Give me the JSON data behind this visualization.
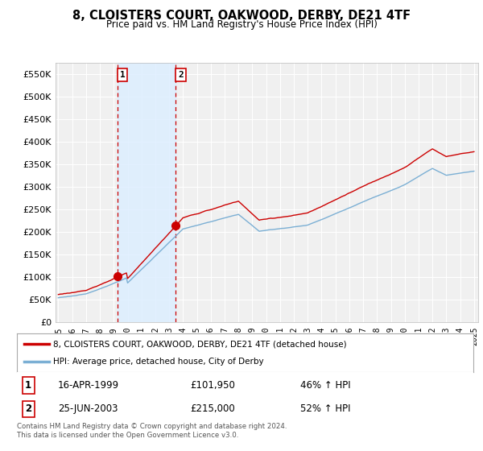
{
  "title": "8, CLOISTERS COURT, OAKWOOD, DERBY, DE21 4TF",
  "subtitle": "Price paid vs. HM Land Registry's House Price Index (HPI)",
  "ylim": [
    0,
    575000
  ],
  "yticks": [
    0,
    50000,
    100000,
    150000,
    200000,
    250000,
    300000,
    350000,
    400000,
    450000,
    500000,
    550000
  ],
  "ytick_labels": [
    "£0",
    "£50K",
    "£100K",
    "£150K",
    "£200K",
    "£250K",
    "£300K",
    "£350K",
    "£400K",
    "£450K",
    "£500K",
    "£550K"
  ],
  "hpi_color": "#7bafd4",
  "price_color": "#cc0000",
  "bg_color": "#ffffff",
  "plot_bg_color": "#f0f0f0",
  "grid_color": "#ffffff",
  "sale1_year": 1999.29,
  "sale1_price": 101950,
  "sale2_year": 2003.48,
  "sale2_price": 215000,
  "shade_color": "#ddeeff",
  "shade_x1": 1999.29,
  "shade_x2": 2003.48,
  "vline_color": "#cc0000",
  "legend_line1": "8, CLOISTERS COURT, OAKWOOD, DERBY, DE21 4TF (detached house)",
  "legend_line2": "HPI: Average price, detached house, City of Derby",
  "sale1_label": "1",
  "sale1_date": "16-APR-1999",
  "sale1_amount": "£101,950",
  "sale1_pct": "46% ↑ HPI",
  "sale2_label": "2",
  "sale2_date": "25-JUN-2003",
  "sale2_amount": "£215,000",
  "sale2_pct": "52% ↑ HPI",
  "footnote": "Contains HM Land Registry data © Crown copyright and database right 2024.\nThis data is licensed under the Open Government Licence v3.0.",
  "xlim_start": 1994.8,
  "xlim_end": 2025.3,
  "xtick_years": [
    1995,
    1996,
    1997,
    1998,
    1999,
    2000,
    2001,
    2002,
    2003,
    2004,
    2005,
    2006,
    2007,
    2008,
    2009,
    2010,
    2011,
    2012,
    2013,
    2014,
    2015,
    2016,
    2017,
    2018,
    2019,
    2020,
    2021,
    2022,
    2023,
    2024,
    2025
  ]
}
